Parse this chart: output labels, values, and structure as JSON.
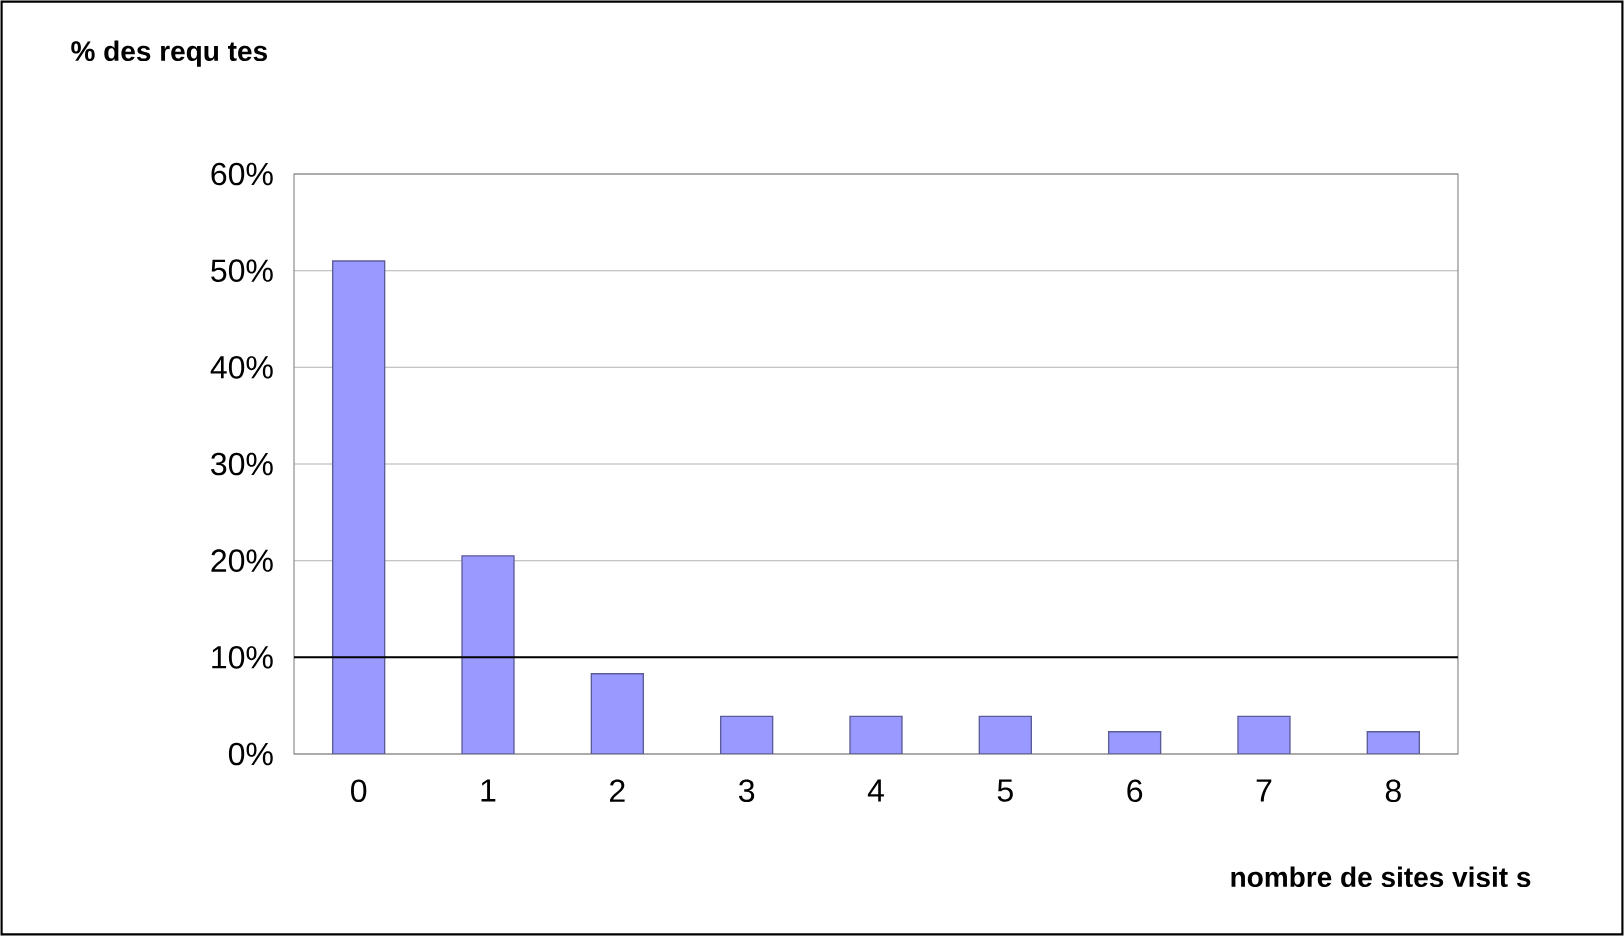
{
  "chart_data": {
    "type": "bar",
    "title": "% des requ tes",
    "xlabel": "nombre de sites visit s",
    "categories": [
      "0",
      "1",
      "2",
      "3",
      "4",
      "5",
      "6",
      "7",
      "8"
    ],
    "values": [
      51,
      20.5,
      8.3,
      3.9,
      3.9,
      3.9,
      2.3,
      3.9,
      2.3
    ],
    "color": "#9999ff",
    "ylim": [
      0,
      60
    ],
    "yticks": [
      {
        "value": 0,
        "label": "0%"
      },
      {
        "value": 10,
        "label": "10%"
      },
      {
        "value": 20,
        "label": "20%"
      },
      {
        "value": 30,
        "label": "30%"
      },
      {
        "value": 40,
        "label": "40%"
      },
      {
        "value": 50,
        "label": "50%"
      },
      {
        "value": 60,
        "label": "60%"
      }
    ],
    "grid": "y",
    "ref_lines": [
      {
        "axis": "y",
        "value": 10,
        "color": "#000000"
      }
    ]
  }
}
